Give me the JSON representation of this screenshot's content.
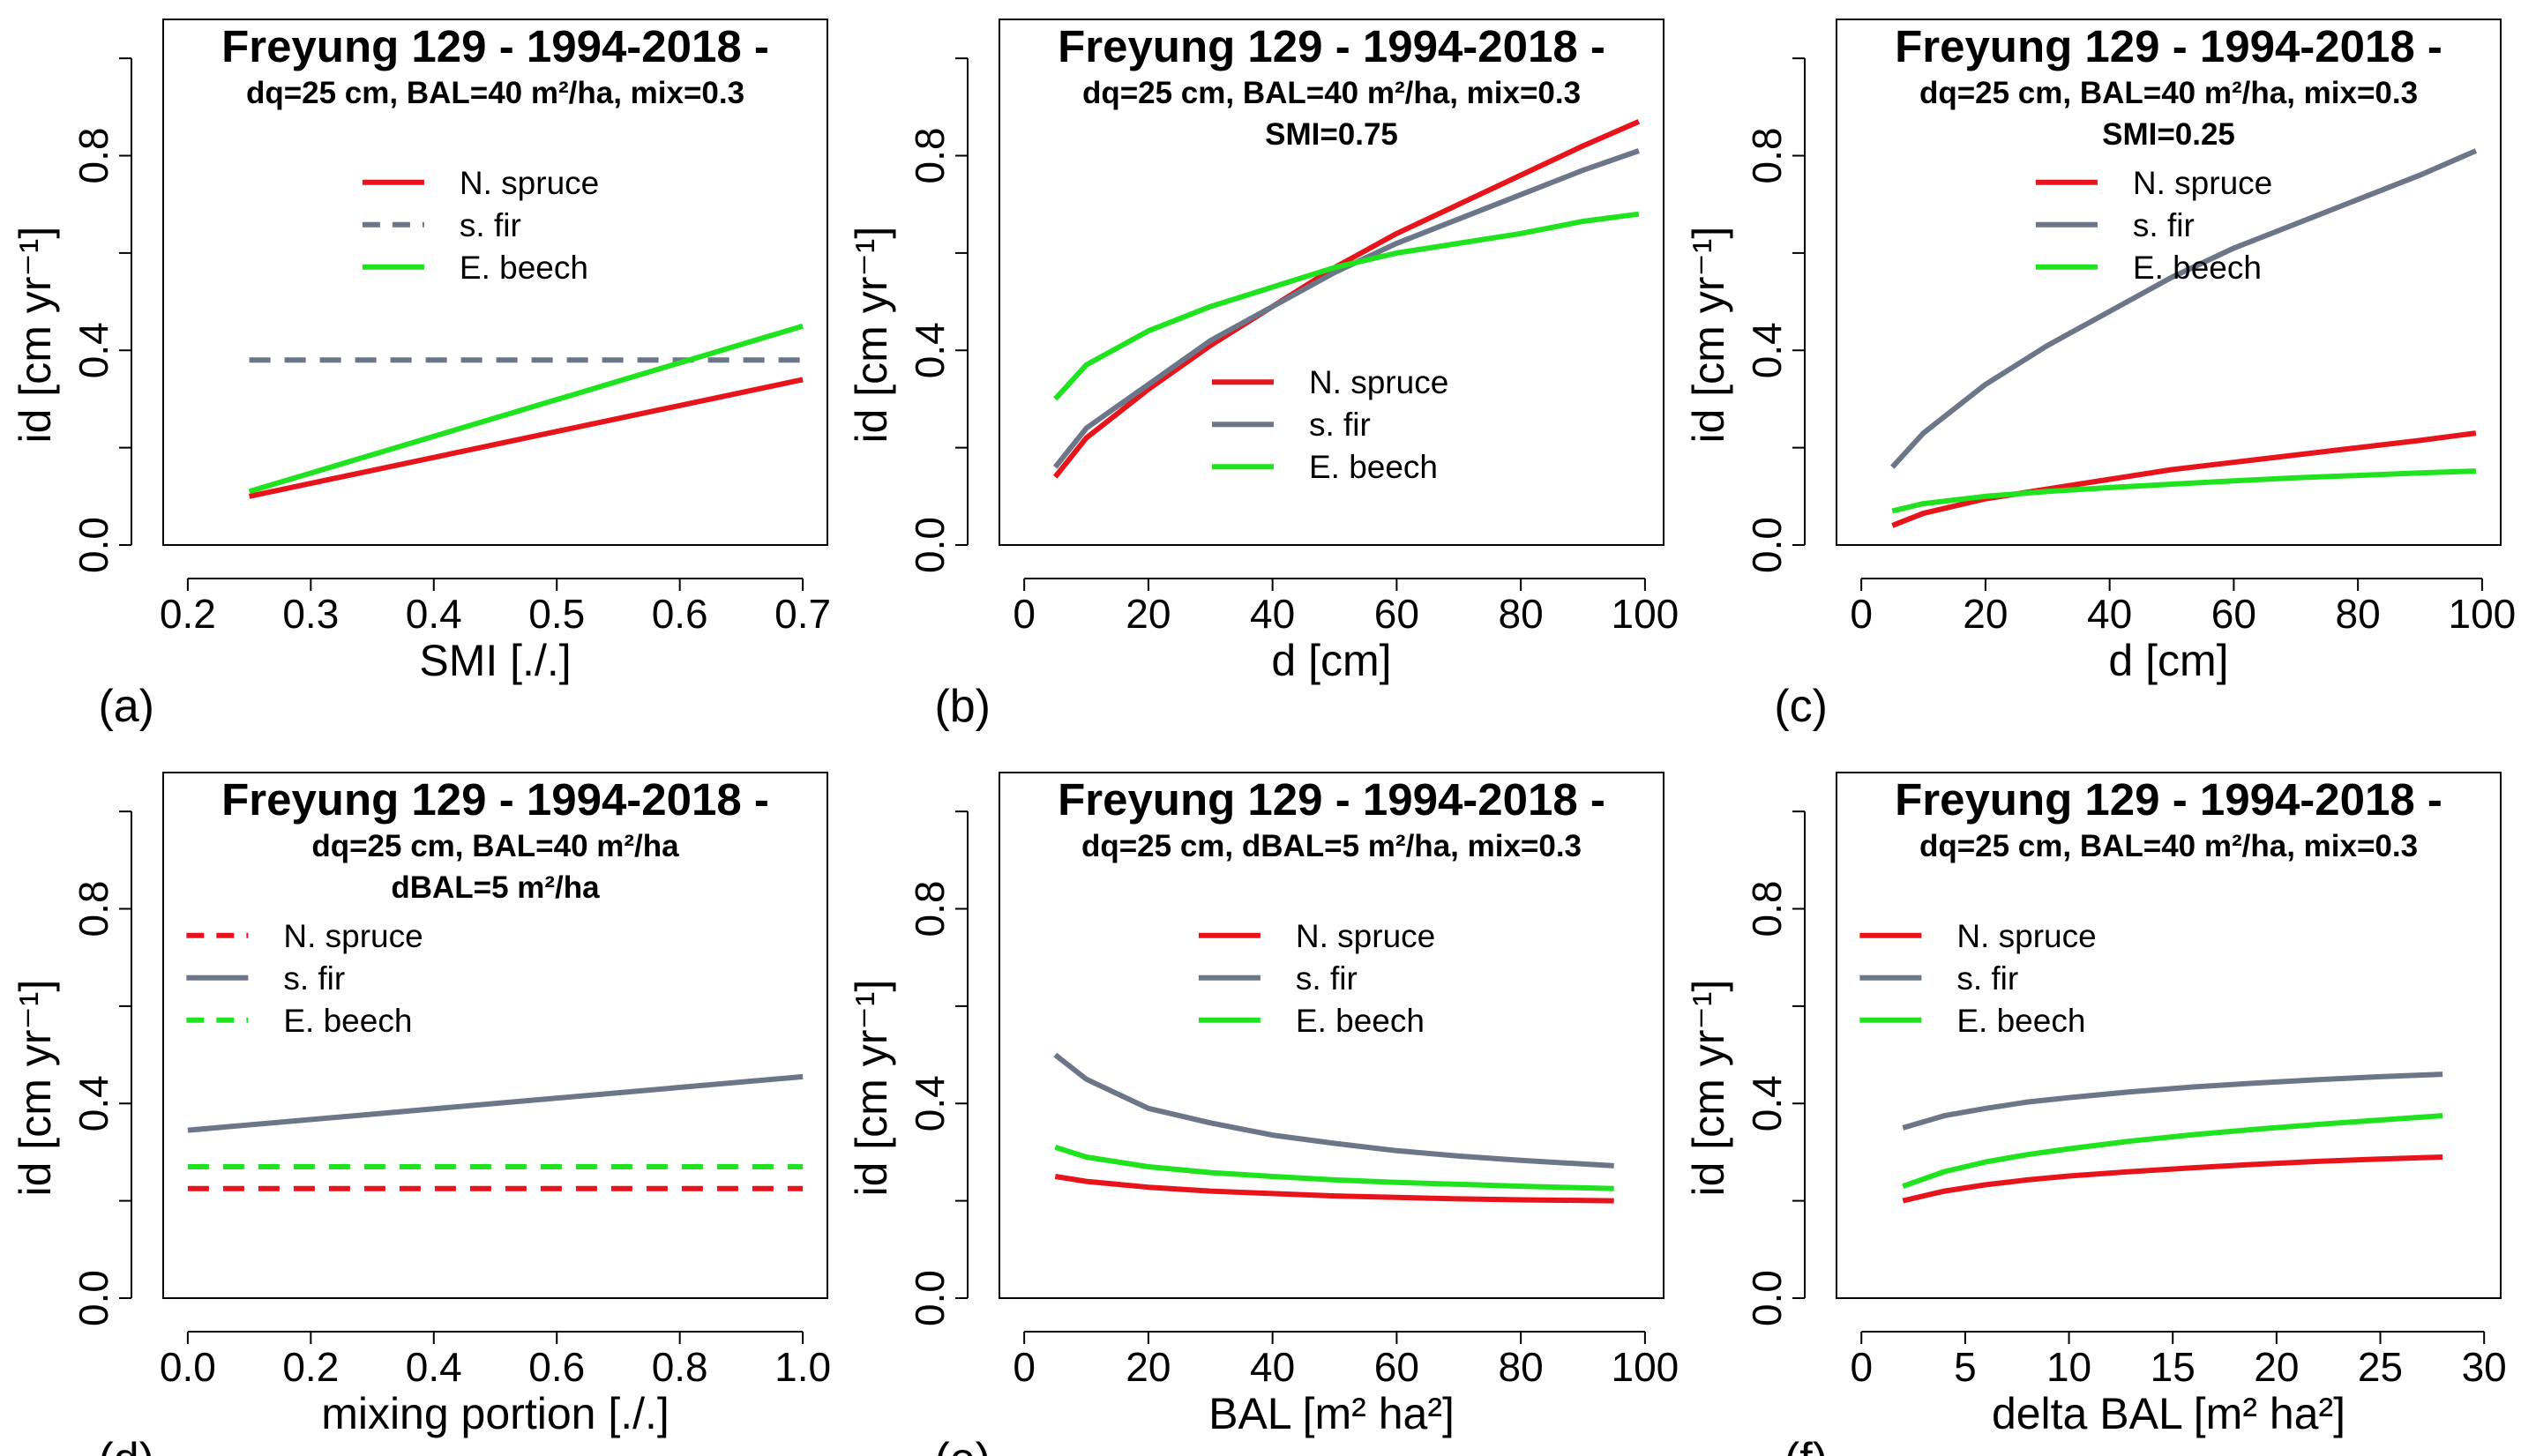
{
  "colors": {
    "spruce": "#e8141b",
    "fir": "#6b7688",
    "beech": "#1ee31e"
  },
  "charts": [
    {
      "type": "line",
      "panel_label": "(a)",
      "title": "Freyung 129 - 1994-2018 -",
      "subtitles": [
        "dq=25 cm, BAL=40 m²/ha, mix=0.3"
      ],
      "xlabel": "SMI [./.]",
      "ylabel": "id [cm yr⁻¹]",
      "xlim": [
        0.18,
        0.72
      ],
      "ylim": [
        0,
        1.08
      ],
      "xticks": [
        0.2,
        0.3,
        0.4,
        0.5,
        0.6,
        0.7
      ],
      "xtick_labels": [
        "0.2",
        "0.3",
        "0.4",
        "0.5",
        "0.6",
        "0.7"
      ],
      "yticks": [
        0,
        0.4,
        0.8
      ],
      "ytick_labels": [
        "0.0",
        "0.4",
        "0.8"
      ],
      "legend": "right",
      "series": [
        {
          "name": "N. spruce",
          "key": "spruce",
          "dashed": false,
          "x": [
            0.25,
            0.7
          ],
          "y": [
            0.1,
            0.34
          ]
        },
        {
          "name": "s. fir",
          "key": "fir",
          "dashed": true,
          "x": [
            0.25,
            0.7
          ],
          "y": [
            0.38,
            0.38
          ]
        },
        {
          "name": "E. beech",
          "key": "beech",
          "dashed": false,
          "x": [
            0.25,
            0.7
          ],
          "y": [
            0.11,
            0.45
          ]
        }
      ]
    },
    {
      "type": "line",
      "panel_label": "(b)",
      "title": "Freyung 129 - 1994-2018 -",
      "subtitles": [
        "dq=25 cm, BAL=40 m²/ha, mix=0.3",
        "SMI=0.75"
      ],
      "xlabel": "d [cm]",
      "ylabel": "id [cm yr⁻¹]",
      "xlim": [
        -4,
        103
      ],
      "ylim": [
        0,
        1.08
      ],
      "xticks": [
        0,
        20,
        40,
        60,
        80,
        100
      ],
      "xtick_labels": [
        "0",
        "20",
        "40",
        "60",
        "80",
        "100"
      ],
      "yticks": [
        0,
        0.4,
        0.8
      ],
      "ytick_labels": [
        "0.0",
        "0.4",
        "0.8"
      ],
      "legend": "bottom-right",
      "series": [
        {
          "name": "N. spruce",
          "key": "spruce",
          "dashed": false,
          "x": [
            5,
            10,
            20,
            30,
            40,
            50,
            60,
            70,
            80,
            90,
            99
          ],
          "y": [
            0.14,
            0.22,
            0.32,
            0.41,
            0.49,
            0.57,
            0.64,
            0.7,
            0.76,
            0.82,
            0.87
          ]
        },
        {
          "name": "s. fir",
          "key": "fir",
          "dashed": false,
          "x": [
            5,
            10,
            20,
            30,
            40,
            50,
            60,
            70,
            80,
            90,
            99
          ],
          "y": [
            0.16,
            0.24,
            0.33,
            0.42,
            0.49,
            0.56,
            0.62,
            0.67,
            0.72,
            0.77,
            0.81
          ]
        },
        {
          "name": "E. beech",
          "key": "beech",
          "dashed": false,
          "x": [
            5,
            10,
            20,
            30,
            40,
            50,
            60,
            70,
            80,
            90,
            99
          ],
          "y": [
            0.3,
            0.37,
            0.44,
            0.49,
            0.53,
            0.57,
            0.6,
            0.62,
            0.64,
            0.665,
            0.68
          ]
        }
      ]
    },
    {
      "type": "line",
      "panel_label": "(c)",
      "title": "Freyung 129 - 1994-2018 -",
      "subtitles": [
        "dq=25 cm, BAL=40 m²/ha, mix=0.3",
        "SMI=0.25"
      ],
      "xlabel": "d [cm]",
      "ylabel": "id [cm yr⁻¹]",
      "xlim": [
        -4,
        103
      ],
      "ylim": [
        0,
        1.08
      ],
      "xticks": [
        0,
        20,
        40,
        60,
        80,
        100
      ],
      "xtick_labels": [
        "0",
        "20",
        "40",
        "60",
        "80",
        "100"
      ],
      "yticks": [
        0,
        0.4,
        0.8
      ],
      "ytick_labels": [
        "0.0",
        "0.4",
        "0.8"
      ],
      "legend": "right",
      "series": [
        {
          "name": "N. spruce",
          "key": "spruce",
          "dashed": false,
          "x": [
            5,
            10,
            20,
            30,
            40,
            50,
            60,
            70,
            80,
            90,
            99
          ],
          "y": [
            0.04,
            0.065,
            0.095,
            0.115,
            0.135,
            0.155,
            0.17,
            0.185,
            0.2,
            0.215,
            0.23
          ]
        },
        {
          "name": "s. fir",
          "key": "fir",
          "dashed": false,
          "x": [
            5,
            10,
            20,
            30,
            40,
            50,
            60,
            70,
            80,
            90,
            99
          ],
          "y": [
            0.16,
            0.23,
            0.33,
            0.41,
            0.48,
            0.55,
            0.61,
            0.66,
            0.71,
            0.76,
            0.81
          ]
        },
        {
          "name": "E. beech",
          "key": "beech",
          "dashed": false,
          "x": [
            5,
            10,
            20,
            30,
            40,
            50,
            60,
            70,
            80,
            90,
            99
          ],
          "y": [
            0.07,
            0.085,
            0.1,
            0.11,
            0.118,
            0.125,
            0.132,
            0.138,
            0.143,
            0.148,
            0.152
          ]
        }
      ]
    },
    {
      "type": "line",
      "panel_label": "(d)",
      "title": "Freyung 129 - 1994-2018 -",
      "subtitles": [
        "dq=25 cm, BAL=40 m²/ha",
        "dBAL=5 m²/ha"
      ],
      "xlabel": "mixing portion [./.]",
      "ylabel": "id [cm yr⁻¹]",
      "xlim": [
        -0.04,
        1.04
      ],
      "ylim": [
        0,
        1.08
      ],
      "xticks": [
        0,
        0.2,
        0.4,
        0.6,
        0.8,
        1.0
      ],
      "xtick_labels": [
        "0.0",
        "0.2",
        "0.4",
        "0.6",
        "0.8",
        "1.0"
      ],
      "yticks": [
        0,
        0.4,
        0.8
      ],
      "ytick_labels": [
        "0.0",
        "0.4",
        "0.8"
      ],
      "legend": "left",
      "series": [
        {
          "name": "N. spruce",
          "key": "spruce",
          "dashed": true,
          "x": [
            0,
            1
          ],
          "y": [
            0.225,
            0.225
          ]
        },
        {
          "name": "s. fir",
          "key": "fir",
          "dashed": false,
          "x": [
            0,
            1
          ],
          "y": [
            0.345,
            0.455
          ]
        },
        {
          "name": "E. beech",
          "key": "beech",
          "dashed": true,
          "x": [
            0,
            1
          ],
          "y": [
            0.27,
            0.27
          ]
        }
      ]
    },
    {
      "type": "line",
      "panel_label": "(e)",
      "title": "Freyung 129 - 1994-2018 -",
      "subtitles": [
        "dq=25 cm, dBAL=5 m²/ha, mix=0.3"
      ],
      "xlabel": "BAL [m² ha²]",
      "ylabel": "id [cm yr⁻¹]",
      "xlim": [
        -4,
        103
      ],
      "ylim": [
        0,
        1.08
      ],
      "xticks": [
        0,
        20,
        40,
        60,
        80,
        100
      ],
      "xtick_labels": [
        "0",
        "20",
        "40",
        "60",
        "80",
        "100"
      ],
      "yticks": [
        0,
        0.4,
        0.8
      ],
      "ytick_labels": [
        "0.0",
        "0.4",
        "0.8"
      ],
      "legend": "right",
      "series": [
        {
          "name": "N. spruce",
          "key": "spruce",
          "dashed": false,
          "x": [
            5,
            10,
            20,
            30,
            40,
            50,
            60,
            70,
            80,
            95
          ],
          "y": [
            0.25,
            0.24,
            0.228,
            0.22,
            0.215,
            0.21,
            0.207,
            0.204,
            0.202,
            0.2
          ]
        },
        {
          "name": "s. fir",
          "key": "fir",
          "dashed": false,
          "x": [
            5,
            10,
            20,
            30,
            40,
            50,
            60,
            70,
            80,
            95
          ],
          "y": [
            0.5,
            0.45,
            0.39,
            0.36,
            0.335,
            0.318,
            0.303,
            0.292,
            0.283,
            0.272
          ]
        },
        {
          "name": "E. beech",
          "key": "beech",
          "dashed": false,
          "x": [
            5,
            10,
            20,
            30,
            40,
            50,
            60,
            70,
            80,
            95
          ],
          "y": [
            0.31,
            0.29,
            0.27,
            0.258,
            0.25,
            0.243,
            0.238,
            0.234,
            0.23,
            0.225
          ]
        }
      ]
    },
    {
      "type": "line",
      "panel_label": "(f)",
      "title": "Freyung 129 - 1994-2018 -",
      "subtitles": [
        "dq=25 cm, BAL=40 m²/ha, mix=0.3"
      ],
      "xlabel": "delta BAL [m² ha²]",
      "ylabel": "id [cm yr⁻¹]",
      "xlim": [
        -1.2,
        30.8
      ],
      "ylim": [
        0,
        1.08
      ],
      "xticks": [
        0,
        5,
        10,
        15,
        20,
        25,
        30
      ],
      "xtick_labels": [
        "0",
        "5",
        "10",
        "15",
        "20",
        "25",
        "30"
      ],
      "yticks": [
        0,
        0.4,
        0.8
      ],
      "ytick_labels": [
        "0.0",
        "0.4",
        "0.8"
      ],
      "legend": "left",
      "series": [
        {
          "name": "N. spruce",
          "key": "spruce",
          "dashed": false,
          "x": [
            2,
            4,
            6,
            8,
            10,
            13,
            16,
            19,
            22,
            25,
            28
          ],
          "y": [
            0.2,
            0.22,
            0.233,
            0.243,
            0.251,
            0.26,
            0.268,
            0.275,
            0.281,
            0.286,
            0.29
          ]
        },
        {
          "name": "s. fir",
          "key": "fir",
          "dashed": false,
          "x": [
            2,
            4,
            6,
            8,
            10,
            13,
            16,
            19,
            22,
            25,
            28
          ],
          "y": [
            0.35,
            0.375,
            0.39,
            0.403,
            0.412,
            0.424,
            0.434,
            0.442,
            0.449,
            0.455,
            0.46
          ]
        },
        {
          "name": "E. beech",
          "key": "beech",
          "dashed": false,
          "x": [
            2,
            4,
            6,
            8,
            10,
            13,
            16,
            19,
            22,
            25,
            28
          ],
          "y": [
            0.23,
            0.26,
            0.28,
            0.295,
            0.307,
            0.323,
            0.336,
            0.347,
            0.357,
            0.366,
            0.375
          ]
        }
      ]
    }
  ]
}
